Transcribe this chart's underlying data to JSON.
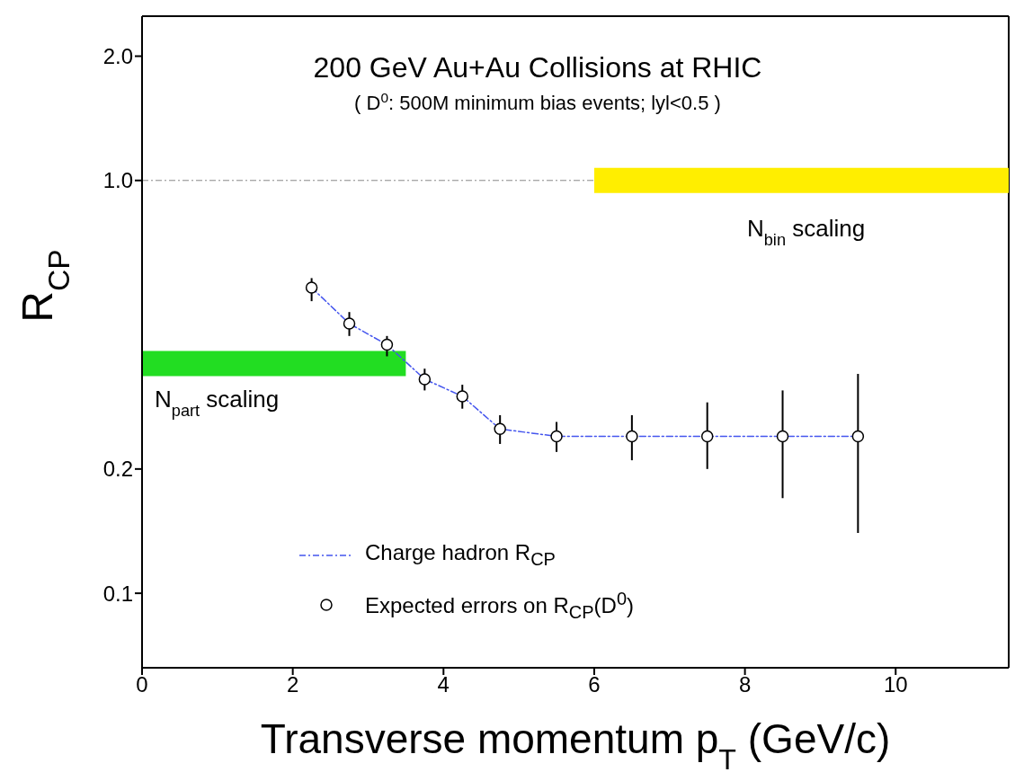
{
  "chart_data": {
    "type": "scatter",
    "title": "200 GeV Au+Au Collisions at RHIC",
    "subtitle": "( D$^{0}$: 500M minimum bias events; lyl<0.5 )",
    "xlabel": "Transverse momentum p$_{T}$ (GeV/c)",
    "ylabel": "R$_{CP}$",
    "x": [
      2.25,
      2.75,
      3.25,
      3.75,
      4.25,
      4.75,
      5.5,
      6.5,
      7.5,
      8.5,
      9.5
    ],
    "series": [
      {
        "name": "N$_{bin}$ scaling",
        "type": "line",
        "color": "#ffee00",
        "x": [
          6,
          11.5
        ],
        "values": [
          1.0,
          1.0
        ]
      },
      {
        "name": "N$_{part}$ scaling",
        "type": "line",
        "color": "#22dd22",
        "x": [
          0,
          3.5
        ],
        "values": [
          0.36,
          0.36
        ]
      },
      {
        "name": "Charge hadron R$_{CP}$",
        "type": "line",
        "color": "#4455ee",
        "line_style": "dashed",
        "values": [
          0.55,
          0.45,
          0.4,
          0.33,
          0.3,
          0.25,
          0.24,
          0.24,
          0.24,
          0.24,
          0.24
        ]
      },
      {
        "name": "Expected errors on R$_{CP}$(D$^{0}$)",
        "color": "#000000",
        "marker": "circle",
        "values": [
          0.55,
          0.45,
          0.4,
          0.33,
          0.3,
          0.25,
          0.24,
          0.24,
          0.24,
          0.24,
          0.24
        ],
        "errors": [
          [
            0.51,
            0.58
          ],
          [
            0.42,
            0.48
          ],
          [
            0.375,
            0.42
          ],
          [
            0.31,
            0.35
          ],
          [
            0.28,
            0.32
          ],
          [
            0.23,
            0.27
          ],
          [
            0.22,
            0.26
          ],
          [
            0.21,
            0.27
          ],
          [
            0.2,
            0.29
          ],
          [
            0.17,
            0.31
          ],
          [
            0.14,
            0.34
          ]
        ]
      }
    ],
    "xlim": [
      0,
      11.5
    ],
    "xticks": [
      0,
      2,
      4,
      6,
      8,
      10
    ],
    "log": "y",
    "ylim": [
      0.066,
      2.5
    ],
    "yticks": [
      0.1,
      0.2,
      {
        "value": 1,
        "label": "1.0"
      },
      {
        "value": 2,
        "label": "2.0"
      }
    ],
    "ref_lines": [
      {
        "axis": "y",
        "value": 1,
        "color": "#888888",
        "line_style": "dashed"
      }
    ],
    "grid": false,
    "legend": "bottom"
  }
}
